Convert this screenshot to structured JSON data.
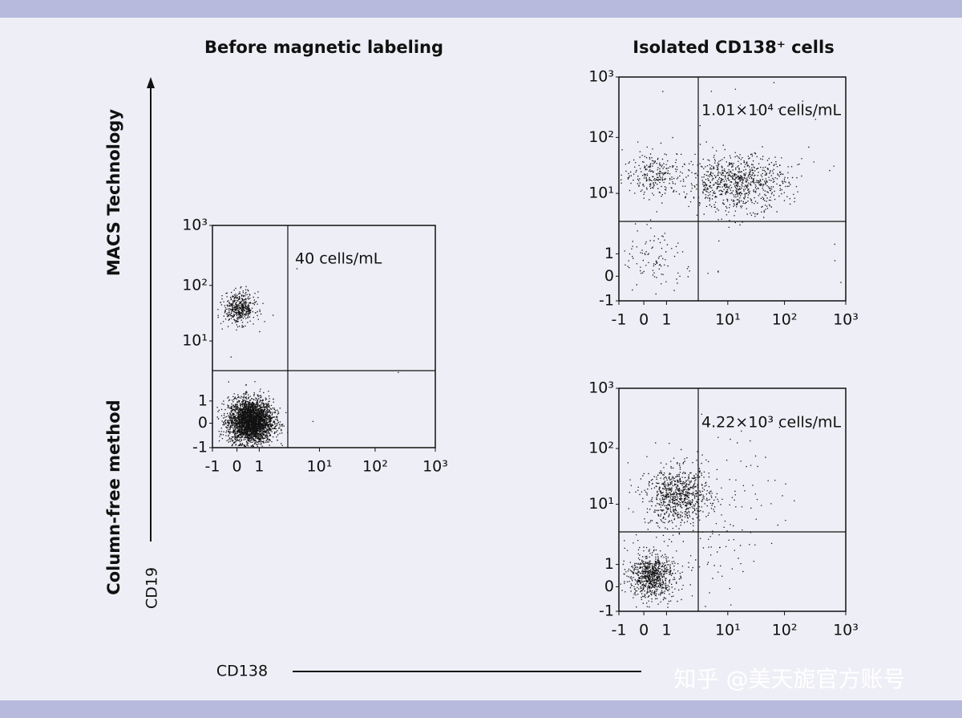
{
  "axis_labels": {
    "macs": "MACS Technology",
    "column_free": "Column-free method",
    "y": "CD19",
    "x": "CD138"
  },
  "panels": [
    {
      "title": "Before magnetic labeling",
      "annotation": "40 cells/mL",
      "xticks": [
        "-1",
        "0",
        "1",
        "10¹",
        "10²",
        "10³"
      ],
      "yticks": [
        "-1",
        "0",
        "1",
        "10¹",
        "10²",
        "10³"
      ]
    },
    {
      "title": "Isolated CD138⁺ cells",
      "annotation": "1.01×10⁴ cells/mL",
      "xticks": [
        "-1",
        "0",
        "1",
        "10¹",
        "10²",
        "10³"
      ],
      "yticks": [
        "-1",
        "0",
        "1",
        "10¹",
        "10²",
        "10³"
      ]
    },
    {
      "annotation": "4.22×10³ cells/mL",
      "xticks": [
        "-1",
        "0",
        "1",
        "10¹",
        "10²",
        "10³"
      ],
      "yticks": [
        "-1",
        "0",
        "1",
        "10¹",
        "10²",
        "10³"
      ]
    }
  ],
  "watermark": "知乎 @美天旎官方账号"
}
